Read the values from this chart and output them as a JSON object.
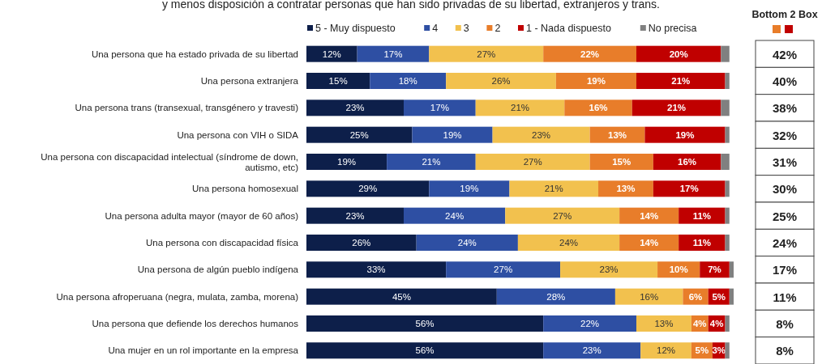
{
  "chart_data": [
    {
      "type": "bar",
      "orientation": "horizontal",
      "stacked": true,
      "title": "y menos disposición a contratar personas que han sido privadas de su libertad, extranjeros y trans.",
      "legend": "top",
      "tick_labels": "y",
      "xlim": [
        0,
        101
      ],
      "categories": [
        "Una persona que ha estado privada de su libertad",
        "Una persona extranjera",
        "Una persona trans (transexual, transgénero y travesti)",
        "Una persona con VIH o SIDA",
        "Una persona con discapacidad intelectual (síndrome de down, autismo, etc)",
        "Una persona homosexual",
        "Una persona adulta mayor (mayor de 60 años)",
        "Una persona con discapacidad física",
        "Una persona de algún pueblo indígena",
        "Una persona afroperuana (negra, mulata, zamba, morena)",
        "Una persona que defiende los derechos humanos",
        "Una mujer en un rol importante en la empresa"
      ],
      "series": [
        {
          "name": "5 - Muy dispuesto",
          "color": "#0d1f4a",
          "values": [
            12,
            15,
            23,
            25,
            19,
            29,
            23,
            26,
            33,
            45,
            56,
            56
          ],
          "value_labels": [
            "12%",
            "15%",
            "23%",
            "25%",
            "19%",
            "29%",
            "23%",
            "26%",
            "33%",
            "45%",
            "56%",
            "56%"
          ]
        },
        {
          "name": "4",
          "color": "#2e4fa3",
          "values": [
            17,
            18,
            17,
            19,
            21,
            19,
            24,
            24,
            27,
            28,
            22,
            23
          ],
          "value_labels": [
            "17%",
            "18%",
            "17%",
            "19%",
            "21%",
            "19%",
            "24%",
            "24%",
            "27%",
            "28%",
            "22%",
            "23%"
          ]
        },
        {
          "name": "3",
          "color": "#f2c14e",
          "values": [
            27,
            26,
            21,
            23,
            27,
            21,
            27,
            24,
            23,
            16,
            13,
            12
          ],
          "value_labels": [
            "27%",
            "26%",
            "21%",
            "23%",
            "27%",
            "21%",
            "27%",
            "24%",
            "23%",
            "16%",
            "13%",
            "12%"
          ]
        },
        {
          "name": "2",
          "color": "#e87d2a",
          "values": [
            22,
            19,
            16,
            13,
            15,
            13,
            14,
            14,
            10,
            6,
            4,
            5
          ],
          "value_labels": [
            "22%",
            "19%",
            "16%",
            "13%",
            "15%",
            "13%",
            "14%",
            "14%",
            "10%",
            "6%",
            "4%",
            "5%"
          ]
        },
        {
          "name": "1 - Nada dispuesto",
          "color": "#c00000",
          "values": [
            20,
            21,
            21,
            19,
            16,
            17,
            11,
            11,
            7,
            5,
            4,
            3
          ],
          "value_labels": [
            "20%",
            "21%",
            "21%",
            "19%",
            "16%",
            "17%",
            "11%",
            "11%",
            "7%",
            "5%",
            "4%",
            "3%"
          ]
        },
        {
          "name": "No precisa",
          "color": "#808080",
          "values": [
            2,
            1,
            2,
            1,
            2,
            1,
            1,
            1,
            1,
            1,
            1,
            1
          ]
        }
      ]
    },
    {
      "type": "other",
      "title": "Bottom 2 Box",
      "value_labels": [
        "42%",
        "40%",
        "38%",
        "32%",
        "31%",
        "30%",
        "25%",
        "24%",
        "17%",
        "11%",
        "8%",
        "8%"
      ]
    }
  ]
}
